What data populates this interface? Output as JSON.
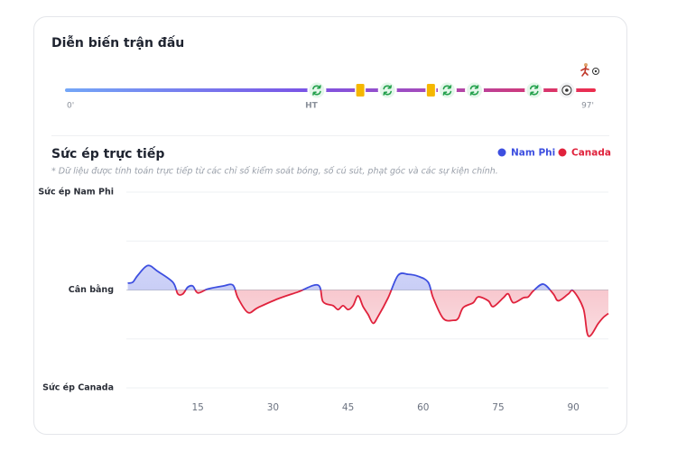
{
  "header": {
    "title": "Diễn biến trận đấu"
  },
  "timeline": {
    "xlim": [
      0,
      97
    ],
    "start": "0'",
    "end": "97'",
    "half": {
      "minute": 45,
      "label": "HT"
    },
    "events": [
      {
        "minute": 46,
        "kind": "sub"
      },
      {
        "minute": 54,
        "kind": "yellow"
      },
      {
        "minute": 59,
        "kind": "sub"
      },
      {
        "minute": 67,
        "kind": "yellow"
      },
      {
        "minute": 70,
        "kind": "sub"
      },
      {
        "minute": 75,
        "kind": "sub"
      },
      {
        "minute": 86,
        "kind": "sub"
      },
      {
        "minute": 92,
        "kind": "goal"
      }
    ]
  },
  "chart_data": {
    "type": "line",
    "title": "Sức ép trực tiếp",
    "subtitle": "* Dữ liệu được tính toán trực tiếp từ các chỉ số kiểm soát bóng, số cú sút, phạt góc và các sự kiện chính.",
    "legend": [
      {
        "name": "Nam Phi",
        "color": "#3d4fe0"
      },
      {
        "name": "Canada",
        "color": "#e0223c"
      }
    ],
    "x": [
      1,
      2,
      3,
      5,
      7,
      10,
      11,
      12,
      13,
      14,
      15,
      17,
      20,
      22,
      23,
      25,
      27,
      31,
      35,
      39,
      40,
      42,
      43,
      44,
      45,
      46,
      47,
      48,
      49,
      50,
      51,
      53,
      55,
      57,
      59,
      61,
      62,
      64,
      66,
      67,
      68,
      70,
      71,
      73,
      74,
      76,
      77,
      78,
      80,
      81,
      82,
      84,
      86,
      87,
      89,
      90,
      92,
      93,
      95,
      96,
      97
    ],
    "values": [
      7,
      8,
      15,
      25,
      19,
      8,
      -4,
      -4,
      3,
      4,
      -3,
      1,
      4,
      5,
      -8,
      -23,
      -18,
      -9,
      -2,
      5,
      -12,
      -16,
      -20,
      -16,
      -20,
      -16,
      -6,
      -17,
      -25,
      -34,
      -27,
      -8,
      15,
      16,
      14,
      8,
      -8,
      -29,
      -31,
      -29,
      -18,
      -13,
      -7,
      -11,
      -17,
      -8,
      -4,
      -13,
      -8,
      -7,
      -1,
      6,
      -4,
      -11,
      -4,
      -1,
      -19,
      -47,
      -34,
      -28,
      -24
    ],
    "xlim": [
      0,
      97
    ],
    "ylim": [
      -100,
      100
    ],
    "xticks": [
      15,
      30,
      45,
      60,
      75,
      90
    ],
    "yticks": [
      {
        "value": 100,
        "label": "Sức ép Nam Phi"
      },
      {
        "value": 0,
        "label": "Cân bằng"
      },
      {
        "value": -100,
        "label": "Sức ép Canada"
      }
    ],
    "grid": true
  }
}
